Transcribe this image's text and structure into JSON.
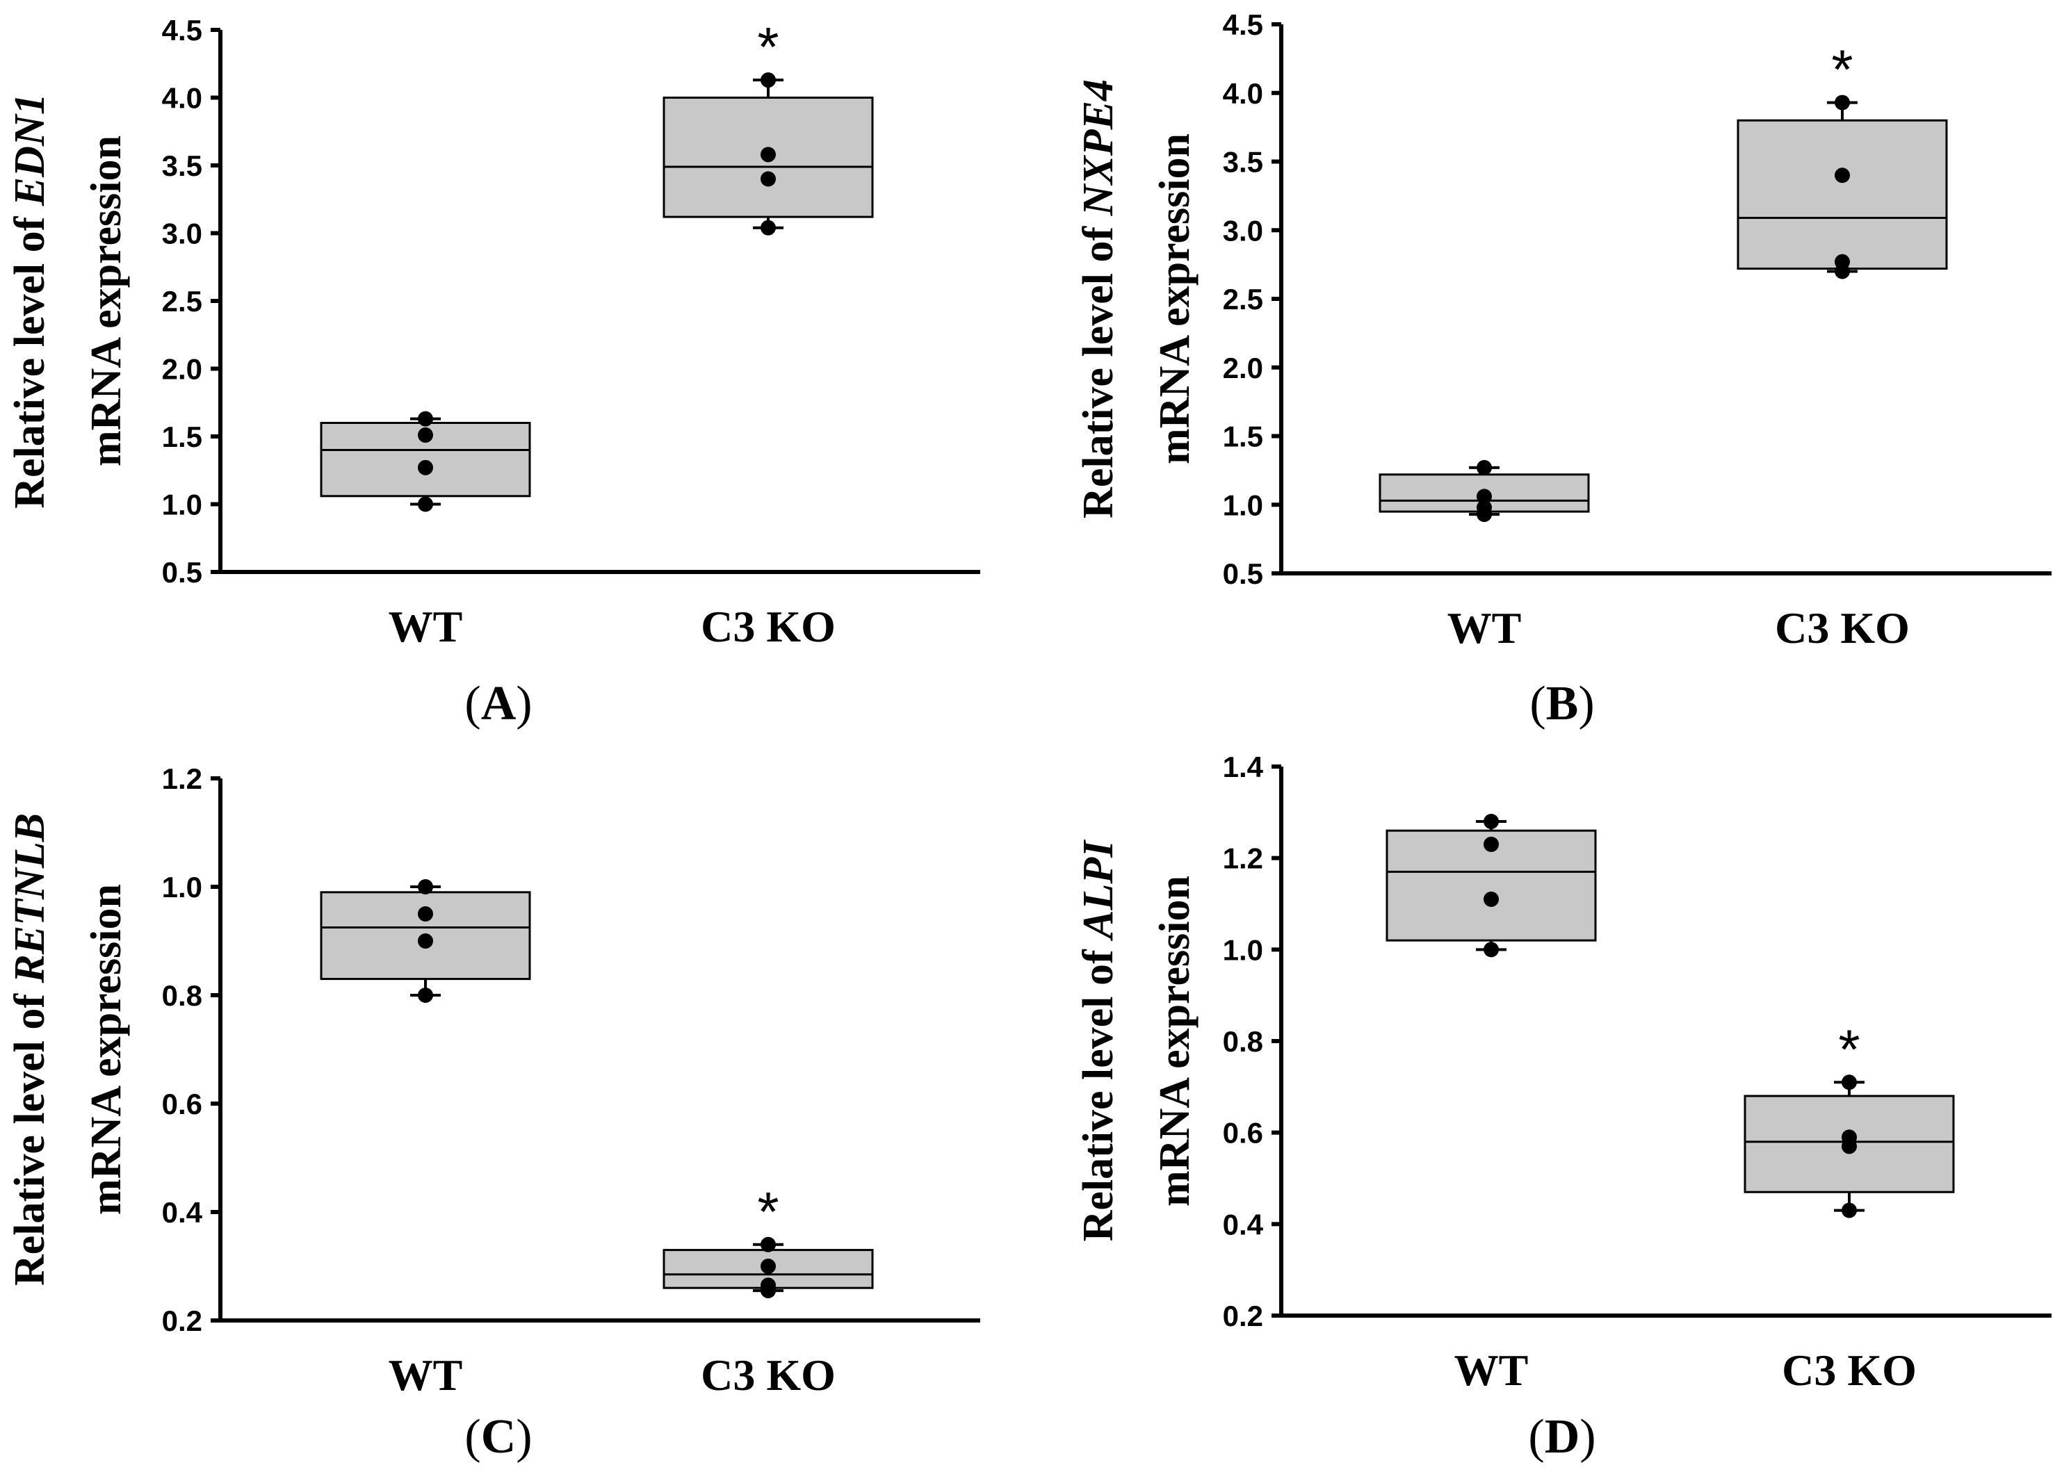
{
  "colors": {
    "box_fill": "#c8c8c8",
    "axis": "#000000"
  },
  "chart_data": [
    {
      "panel": "A",
      "type": "box",
      "panel_label_prefix": "(",
      "panel_label_letter": "A",
      "panel_label_suffix": ")",
      "ylabel_line1_prefix": "Relative level of ",
      "ylabel_gene": "EDN1",
      "ylabel_line2": "mRNA expression",
      "ylim": [
        0.5,
        4.5
      ],
      "yticks": [
        0.5,
        1.0,
        1.5,
        2.0,
        2.5,
        3.0,
        3.5,
        4.0,
        4.5
      ],
      "ytick_labels": [
        "0.5",
        "1.0",
        "1.5",
        "2.0",
        "2.5",
        "3.0",
        "3.5",
        "4.0",
        "4.5"
      ],
      "categories": [
        "WT",
        "C3 KO"
      ],
      "groups": [
        {
          "name": "WT",
          "q1": 1.06,
          "median": 1.4,
          "q3": 1.6,
          "min": 1.0,
          "max": 1.63,
          "points": [
            1.0,
            1.27,
            1.51,
            1.63
          ],
          "significance": ""
        },
        {
          "name": "C3 KO",
          "q1": 3.12,
          "median": 3.49,
          "q3": 4.0,
          "min": 3.04,
          "max": 4.13,
          "points": [
            3.04,
            3.4,
            3.58,
            4.13
          ],
          "significance": "*"
        }
      ]
    },
    {
      "panel": "B",
      "type": "box",
      "panel_label_prefix": "(",
      "panel_label_letter": "B",
      "panel_label_suffix": ")",
      "ylabel_line1_prefix": "Relative level of ",
      "ylabel_gene": "NXPE4",
      "ylabel_line2": "mRNA expression",
      "ylim": [
        0.5,
        4.5
      ],
      "yticks": [
        0.5,
        1.0,
        1.5,
        2.0,
        2.5,
        3.0,
        3.5,
        4.0,
        4.5
      ],
      "ytick_labels": [
        "0.5",
        "1.0",
        "1.5",
        "2.0",
        "2.5",
        "3.0",
        "3.5",
        "4.0",
        "4.5"
      ],
      "categories": [
        "WT",
        "C3 KO"
      ],
      "groups": [
        {
          "name": "WT",
          "q1": 0.95,
          "median": 1.03,
          "q3": 1.22,
          "min": 0.93,
          "max": 1.27,
          "points": [
            0.93,
            0.98,
            1.06,
            1.27
          ],
          "significance": ""
        },
        {
          "name": "C3 KO",
          "q1": 2.72,
          "median": 3.09,
          "q3": 3.8,
          "min": 2.7,
          "max": 3.93,
          "points": [
            2.7,
            2.77,
            3.4,
            3.93
          ],
          "significance": "*"
        }
      ]
    },
    {
      "panel": "C",
      "type": "box",
      "panel_label_prefix": "(",
      "panel_label_letter": "C",
      "panel_label_suffix": ")",
      "ylabel_line1_prefix": "Relative level of ",
      "ylabel_gene": "RETNLB",
      "ylabel_line2": "mRNA expression",
      "ylim": [
        0.2,
        1.2
      ],
      "yticks": [
        0.2,
        0.4,
        0.6,
        0.8,
        1.0,
        1.2
      ],
      "ytick_labels": [
        "0.2",
        "0.4",
        "0.6",
        "0.8",
        "1.0",
        "1.2"
      ],
      "categories": [
        "WT",
        "C3 KO"
      ],
      "groups": [
        {
          "name": "WT",
          "q1": 0.83,
          "median": 0.925,
          "q3": 0.99,
          "min": 0.8,
          "max": 1.0,
          "points": [
            0.8,
            0.9,
            0.95,
            1.0
          ],
          "significance": ""
        },
        {
          "name": "C3 KO",
          "q1": 0.26,
          "median": 0.285,
          "q3": 0.33,
          "min": 0.255,
          "max": 0.34,
          "points": [
            0.255,
            0.265,
            0.3,
            0.34
          ],
          "significance": "*"
        }
      ]
    },
    {
      "panel": "D",
      "type": "box",
      "panel_label_prefix": "(",
      "panel_label_letter": "D",
      "panel_label_suffix": ")",
      "ylabel_line1_prefix": "Relative level of ",
      "ylabel_gene": "ALPI",
      "ylabel_line2": "mRNA expression",
      "ylim": [
        0.2,
        1.4
      ],
      "yticks": [
        0.2,
        0.4,
        0.6,
        0.8,
        1.0,
        1.2,
        1.4
      ],
      "ytick_labels": [
        "0.2",
        "0.4",
        "0.6",
        "0.8",
        "1.0",
        "1.2",
        "1.4"
      ],
      "categories": [
        "WT",
        "C3 KO"
      ],
      "groups": [
        {
          "name": "WT",
          "q1": 1.02,
          "median": 1.17,
          "q3": 1.26,
          "min": 1.0,
          "max": 1.28,
          "points": [
            1.0,
            1.11,
            1.23,
            1.28
          ],
          "significance": ""
        },
        {
          "name": "C3 KO",
          "q1": 0.47,
          "median": 0.58,
          "q3": 0.68,
          "min": 0.43,
          "max": 0.71,
          "points": [
            0.43,
            0.57,
            0.59,
            0.71
          ],
          "significance": "*"
        }
      ]
    }
  ]
}
